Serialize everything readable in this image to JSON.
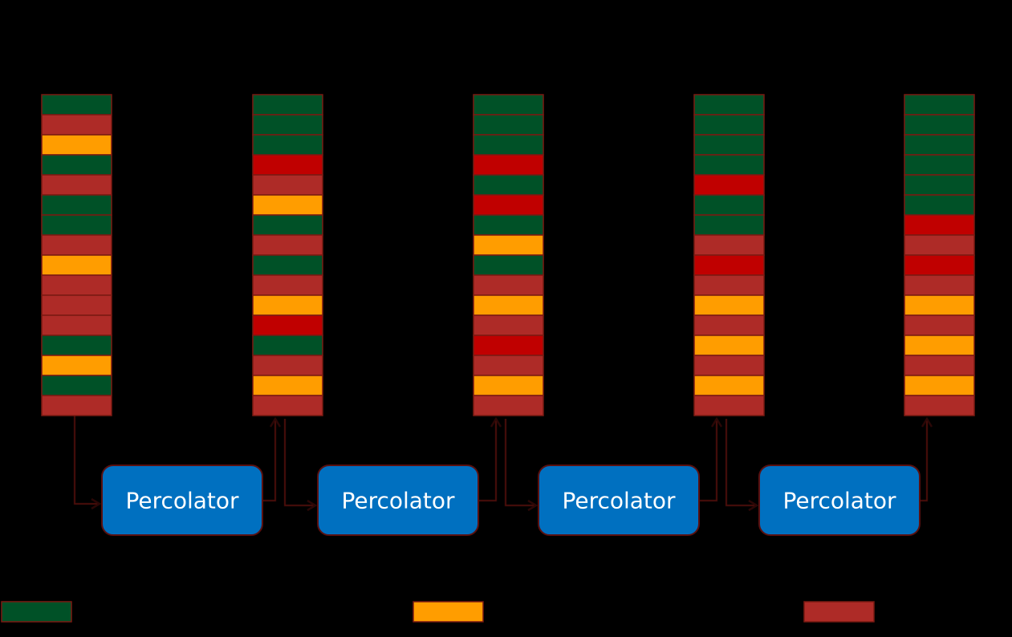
{
  "colors": {
    "green": "#005127",
    "orange": "#ff9d00",
    "brown": "#ae2b27",
    "red": "#c00000",
    "box_fill": "#0070c0",
    "connector": "#2a0706"
  },
  "stacks": [
    {
      "cells": [
        "green",
        "brown",
        "orange",
        "green",
        "brown",
        "green",
        "green",
        "brown",
        "orange",
        "brown",
        "brown",
        "brown",
        "green",
        "orange",
        "green",
        "brown"
      ]
    },
    {
      "cells": [
        "green",
        "green",
        "green",
        "red",
        "brown",
        "orange",
        "green",
        "brown",
        "green",
        "brown",
        "orange",
        "red",
        "green",
        "brown",
        "orange",
        "brown"
      ]
    },
    {
      "cells": [
        "green",
        "green",
        "green",
        "red",
        "green",
        "red",
        "green",
        "orange",
        "green",
        "brown",
        "orange",
        "brown",
        "red",
        "brown",
        "orange",
        "brown"
      ]
    },
    {
      "cells": [
        "green",
        "green",
        "green",
        "green",
        "red",
        "green",
        "green",
        "brown",
        "red",
        "brown",
        "orange",
        "brown",
        "orange",
        "brown",
        "orange",
        "brown"
      ]
    },
    {
      "cells": [
        "green",
        "green",
        "green",
        "green",
        "green",
        "green",
        "red",
        "brown",
        "red",
        "brown",
        "orange",
        "brown",
        "orange",
        "brown",
        "orange",
        "brown"
      ]
    }
  ],
  "percolators": [
    {
      "label": "Percolator"
    },
    {
      "label": "Percolator"
    },
    {
      "label": "Percolator"
    },
    {
      "label": "Percolator"
    }
  ],
  "legend": [
    {
      "color": "green",
      "icon": "green-swatch"
    },
    {
      "color": "orange",
      "icon": "orange-swatch"
    },
    {
      "color": "brown",
      "icon": "brown-swatch"
    }
  ]
}
